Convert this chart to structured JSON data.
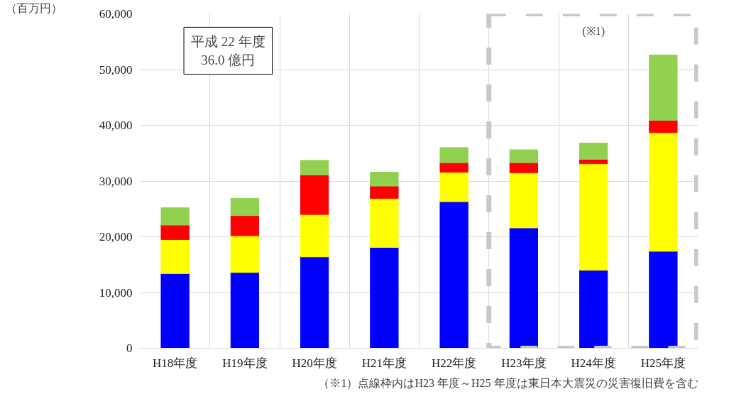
{
  "chart_data": {
    "type": "bar",
    "stacked": true,
    "ylabel": "（百万円）",
    "categories": [
      "H18年度",
      "H19年度",
      "H20年度",
      "H21年度",
      "H22年度",
      "H23年度",
      "H24年度",
      "H25年度"
    ],
    "series": [
      {
        "color": "#0000ff",
        "values": [
          13400,
          13600,
          16400,
          18100,
          26300,
          21600,
          14000,
          17400
        ]
      },
      {
        "color": "#ffff00",
        "values": [
          6100,
          6600,
          7600,
          8800,
          5300,
          9900,
          19100,
          21300
        ]
      },
      {
        "color": "#ff0000",
        "values": [
          2600,
          3600,
          7100,
          2200,
          1700,
          1800,
          800,
          2200
        ]
      },
      {
        "color": "#92d050",
        "values": [
          3100,
          3100,
          2600,
          2500,
          2700,
          2300,
          2900,
          11700
        ]
      }
    ],
    "ylim": [
      0,
      60000
    ],
    "yticks": [
      0,
      {
        "value": 10000,
        "label": "10,000"
      },
      {
        "value": 20000,
        "label": "20,000"
      },
      {
        "value": 30000,
        "label": "30,000"
      },
      {
        "value": 40000,
        "label": "40,000"
      },
      {
        "value": 50000,
        "label": "50,000"
      },
      {
        "value": 60000,
        "label": "60,000"
      }
    ],
    "grid": true,
    "annotations": [
      "平成 22 年度\n36.0 億円",
      "(※1)",
      "（※1）点線枠内はH23 年度～H25 年度は東日本大震災の災害復旧費を含む"
    ]
  }
}
